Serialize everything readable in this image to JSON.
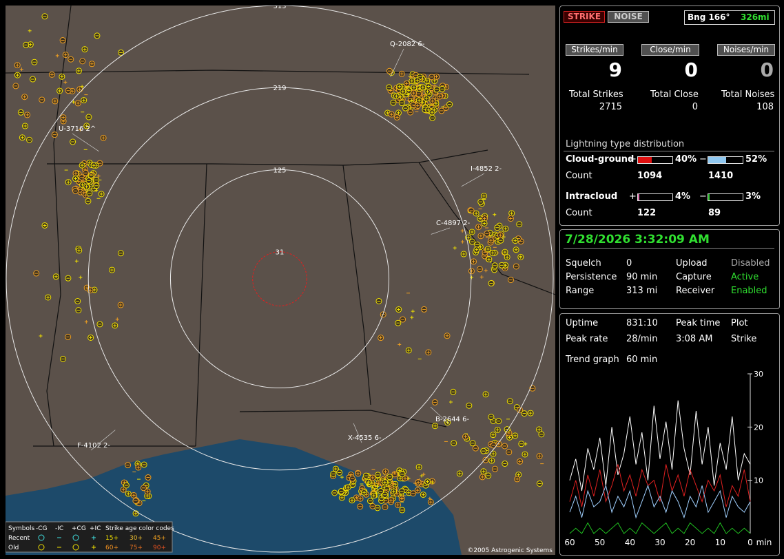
{
  "header": {
    "strike_button": "STRIKE",
    "noise_button": "NOISE",
    "bearing": "Bng 166°",
    "distance": "326mi"
  },
  "rates": [
    {
      "label": "Strikes/min",
      "value": 9
    },
    {
      "label": "Close/min",
      "value": 0
    },
    {
      "label": "Noises/min",
      "value": 0
    }
  ],
  "totals": [
    {
      "label": "Total Strikes",
      "value": 2715
    },
    {
      "label": "Total Close",
      "value": 0
    },
    {
      "label": "Total Noises",
      "value": 108
    }
  ],
  "distribution": {
    "title": "Lightning type distribution",
    "count_label": "Count",
    "rows": [
      {
        "label": "Cloud-ground",
        "positive": {
          "sign": "+",
          "percent": {
            "value": 40,
            "label": "40%"
          },
          "count": 1094,
          "color": "#e01010"
        },
        "negative": {
          "sign": "−",
          "percent": {
            "value": 52,
            "label": "52%"
          },
          "count": 1410,
          "color": "#90c8f0"
        }
      },
      {
        "label": "Intracloud",
        "positive": {
          "sign": "+",
          "percent": {
            "value": 4,
            "label": "4%"
          },
          "count": 122,
          "color": "#e070b0"
        },
        "negative": {
          "sign": "−",
          "percent": {
            "value": 3,
            "label": "3%"
          },
          "count": 89,
          "color": "#30c030"
        }
      }
    ]
  },
  "clock": "7/28/2026 3:32:09 AM",
  "status": [
    [
      {
        "label": "Squelch",
        "value": 0
      },
      {
        "label": "Upload",
        "value": "Disabled"
      }
    ],
    [
      {
        "label": "Persistence",
        "value": "90 min"
      },
      {
        "label": "Capture",
        "value": "Active"
      }
    ],
    [
      {
        "label": "Range",
        "value": "313 mi"
      },
      {
        "label": "Receiver",
        "value": "Enabled"
      }
    ]
  ],
  "stats": {
    "uptime_label": "Uptime",
    "uptime": "831:10",
    "peak_time_label": "Peak time",
    "peak_time": "3:08 AM",
    "plot_label": "Plot",
    "plot": "Strike",
    "peak_rate_label": "Peak rate",
    "peak_rate": "28/min",
    "trend_label": "Trend graph",
    "trend_window": "60 min"
  },
  "chart_data": {
    "type": "line",
    "x_label": "min",
    "x": [
      60,
      58,
      56,
      54,
      52,
      50,
      48,
      46,
      44,
      42,
      40,
      38,
      36,
      34,
      32,
      30,
      28,
      26,
      24,
      22,
      20,
      18,
      16,
      14,
      12,
      10,
      8,
      6,
      4,
      2,
      0
    ],
    "xlim": [
      60,
      0
    ],
    "xticks": [
      60,
      50,
      40,
      30,
      20,
      10,
      0
    ],
    "ylim": [
      0,
      30
    ],
    "yticks": [
      10,
      20,
      30
    ],
    "series": [
      {
        "color": "#ffffff",
        "values": [
          10,
          14,
          8,
          16,
          12,
          18,
          9,
          20,
          11,
          15,
          22,
          13,
          19,
          10,
          24,
          14,
          21,
          12,
          25,
          16,
          11,
          23,
          13,
          20,
          9,
          17,
          12,
          22,
          10,
          15,
          13
        ]
      },
      {
        "color": "#e02020",
        "values": [
          6,
          10,
          5,
          11,
          7,
          12,
          6,
          9,
          13,
          8,
          11,
          7,
          12,
          9,
          10,
          6,
          13,
          8,
          11,
          7,
          12,
          9,
          6,
          10,
          8,
          11,
          5,
          9,
          7,
          12,
          6
        ]
      },
      {
        "color": "#a0d0ff",
        "values": [
          4,
          7,
          3,
          8,
          5,
          6,
          9,
          4,
          7,
          5,
          8,
          3,
          6,
          9,
          5,
          7,
          4,
          8,
          6,
          3,
          7,
          5,
          9,
          4,
          6,
          8,
          3,
          7,
          5,
          4,
          6
        ]
      },
      {
        "color": "#20c020",
        "values": [
          0,
          1,
          0,
          2,
          0,
          1,
          0,
          1,
          2,
          0,
          1,
          0,
          2,
          1,
          0,
          1,
          2,
          0,
          1,
          0,
          2,
          1,
          0,
          1,
          0,
          2,
          0,
          1,
          0,
          1,
          0
        ]
      }
    ]
  },
  "map": {
    "ring_labels": [
      313,
      219,
      125,
      31
    ],
    "strike_labels": [
      "Q-2082 6-",
      "U-3716 2^",
      "I-4852 2-",
      "C-4897 2-",
      "B-2644 6-",
      "X-4535 6-",
      "F-4102 2-"
    ],
    "legend": {
      "symbols": "Symbols",
      "types": [
        "-CG",
        "-IC",
        "+CG",
        "+IC"
      ],
      "age_title": "Strike age color codes",
      "rows": [
        {
          "label": "Recent",
          "ages": [
            "15+",
            "30+",
            "45+"
          ]
        },
        {
          "label": "Old",
          "ages": [
            "60+",
            "75+",
            "90+"
          ]
        }
      ]
    },
    "copyright": "©2005 Astrogenic Systems"
  }
}
